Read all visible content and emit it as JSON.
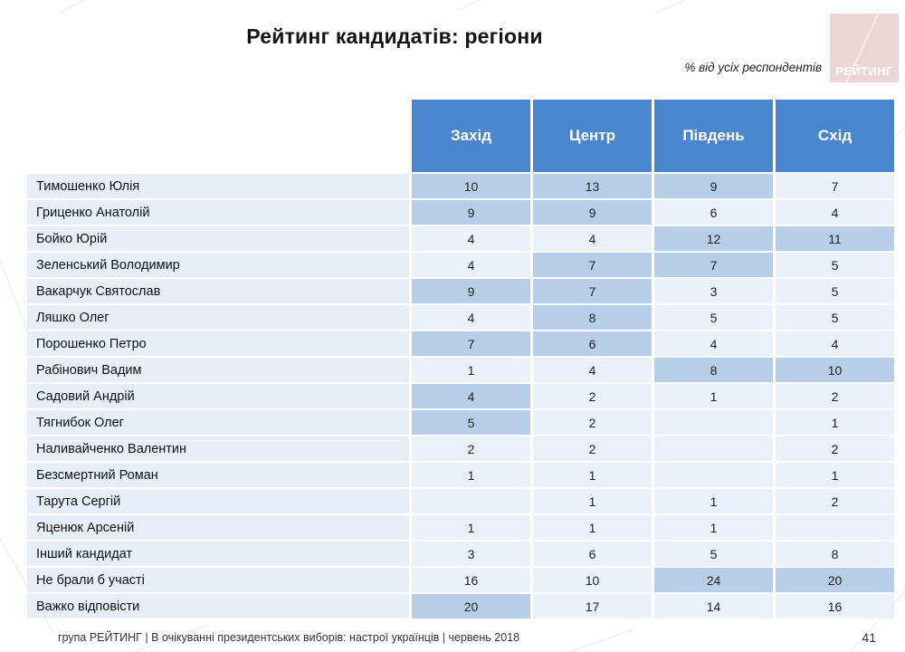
{
  "slide": {
    "title": "Рейтинг кандидатів: регіони",
    "subtitle": "% від усіх респондентів",
    "logo_text": "РЕЙТИНГ",
    "footer": "група РЕЙТИНГ  | В очікуванні президентських виборів: настрої українців |  червень 2018",
    "page_number": "41"
  },
  "colors": {
    "header_bg": "#4a86cd",
    "header_text": "#ffffff",
    "row_bg": "#eaf1fa",
    "name_col_bg": "#e7eef8",
    "highlight_bg": "#b7cee8",
    "logo_bg": "#eed5d5"
  },
  "chart_data": {
    "type": "table",
    "title": "Рейтинг кандидатів: регіони",
    "unit_note": "% від усіх респондентів",
    "columns": [
      "Захід",
      "Центр",
      "Південь",
      "Схід"
    ],
    "rows": [
      {
        "name": "Тимошенко Юлія",
        "values": [
          "10",
          "13",
          "9",
          "7"
        ],
        "highlights": [
          true,
          true,
          true,
          false
        ]
      },
      {
        "name": "Гриценко Анатолій",
        "values": [
          "9",
          "9",
          "6",
          "4"
        ],
        "highlights": [
          true,
          true,
          false,
          false
        ]
      },
      {
        "name": "Бойко Юрій",
        "values": [
          "4",
          "4",
          "12",
          "11"
        ],
        "highlights": [
          false,
          false,
          true,
          true
        ]
      },
      {
        "name": "Зеленський Володимир",
        "values": [
          "4",
          "7",
          "7",
          "5"
        ],
        "highlights": [
          false,
          true,
          true,
          false
        ]
      },
      {
        "name": "Вакарчук Святослав",
        "values": [
          "9",
          "7",
          "3",
          "5"
        ],
        "highlights": [
          true,
          true,
          false,
          false
        ]
      },
      {
        "name": "Ляшко Олег",
        "values": [
          "4",
          "8",
          "5",
          "5"
        ],
        "highlights": [
          false,
          true,
          false,
          false
        ]
      },
      {
        "name": "Порошенко Петро",
        "values": [
          "7",
          "6",
          "4",
          "4"
        ],
        "highlights": [
          true,
          true,
          false,
          false
        ]
      },
      {
        "name": "Рабінович Вадим",
        "values": [
          "1",
          "4",
          "8",
          "10"
        ],
        "highlights": [
          false,
          false,
          true,
          true
        ]
      },
      {
        "name": "Садовий Андрій",
        "values": [
          "4",
          "2",
          "1",
          "2"
        ],
        "highlights": [
          true,
          false,
          false,
          false
        ]
      },
      {
        "name": "Тягнибок Олег",
        "values": [
          "5",
          "2",
          "",
          "1"
        ],
        "highlights": [
          true,
          false,
          false,
          false
        ]
      },
      {
        "name": "Наливайченко Валентин",
        "values": [
          "2",
          "2",
          "",
          "2"
        ],
        "highlights": [
          false,
          false,
          false,
          false
        ]
      },
      {
        "name": "Безсмертний Роман",
        "values": [
          "1",
          "1",
          "",
          "1"
        ],
        "highlights": [
          false,
          false,
          false,
          false
        ]
      },
      {
        "name": "Тарута Сергій",
        "values": [
          "",
          "1",
          "1",
          "2"
        ],
        "highlights": [
          false,
          false,
          false,
          false
        ]
      },
      {
        "name": "Яценюк Арсеній",
        "values": [
          "1",
          "1",
          "1",
          ""
        ],
        "highlights": [
          false,
          false,
          false,
          false
        ]
      },
      {
        "name": "Інший кандидат",
        "values": [
          "3",
          "6",
          "5",
          "8"
        ],
        "highlights": [
          false,
          false,
          false,
          false
        ]
      },
      {
        "name": "Не брали б участі",
        "values": [
          "16",
          "10",
          "24",
          "20"
        ],
        "highlights": [
          false,
          false,
          true,
          true
        ]
      },
      {
        "name": "Важко відповісти",
        "values": [
          "20",
          "17",
          "14",
          "16"
        ],
        "highlights": [
          true,
          false,
          false,
          false
        ]
      }
    ]
  }
}
